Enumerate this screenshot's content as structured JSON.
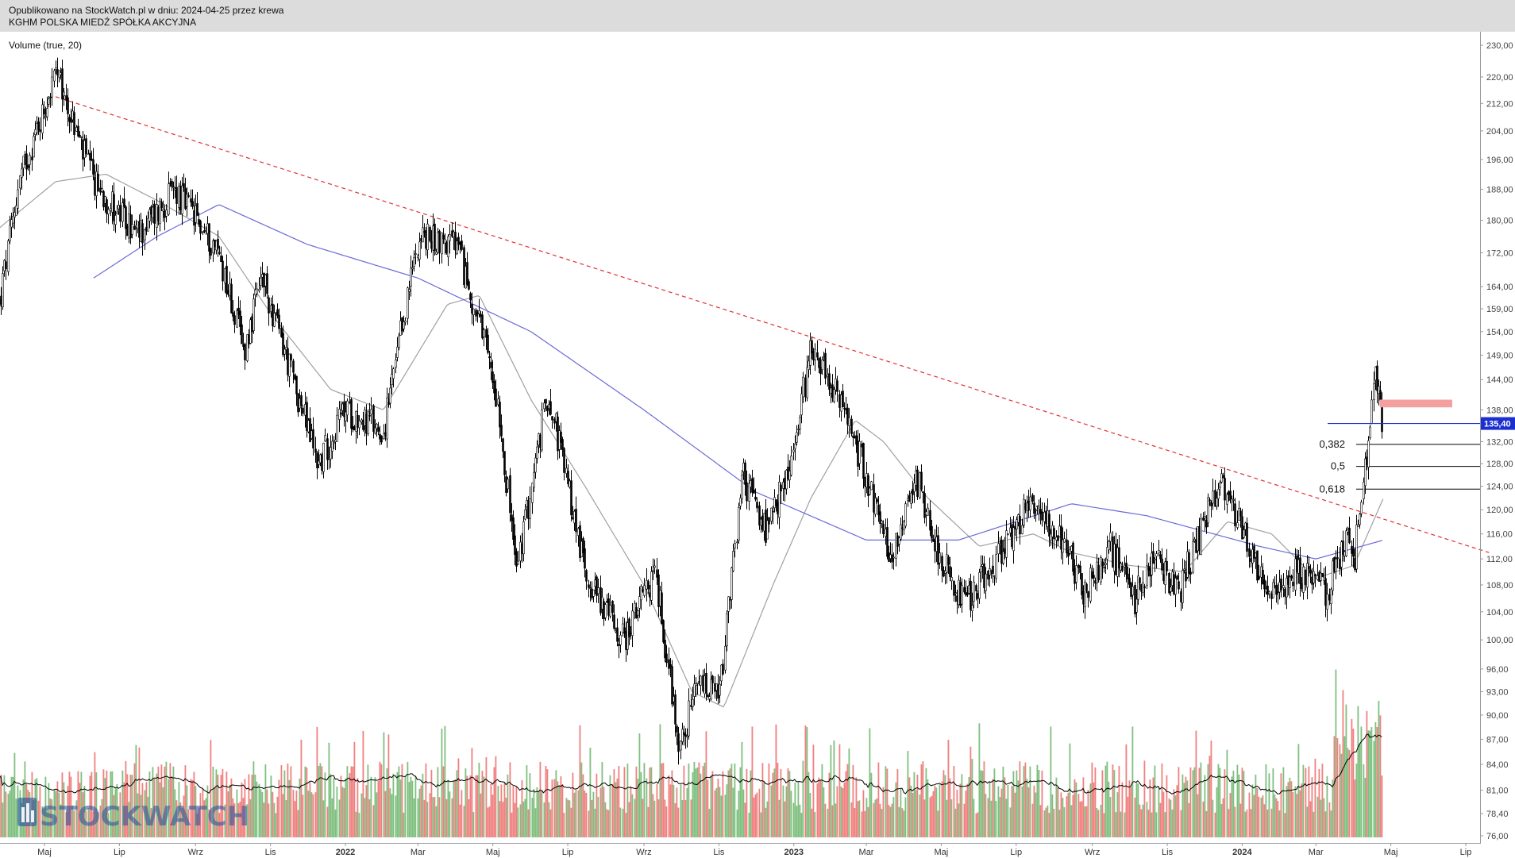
{
  "header": {
    "published": "Opublikowano na StockWatch.pl w dniu: 2024-04-25 przez krewa",
    "company": "KGHM POLSKA MIEDŹ SPÓŁKA AKCYJNA"
  },
  "indicator_label": "Volume (true, 20)",
  "watermark": "STOCKWATCH",
  "colors": {
    "up_volume": "#7fbf7f",
    "down_volume": "#f08080",
    "trendline": "#e03030",
    "ma_long": "#6a6ad8",
    "ma_short": "#a0a0a0",
    "resistance_zone": "#f4a0a0",
    "price_badge": "#1b2fd0"
  },
  "chart_data": {
    "type": "candlestick",
    "title": "KGHM POLSKA MIEDŹ SPÓŁKA AKCYJNA",
    "y_scale": "log",
    "ylim": [
      76,
      232
    ],
    "y_ticks": [
      "230,00",
      "220,00",
      "212,00",
      "204,00",
      "196,00",
      "188,00",
      "180,00",
      "172,00",
      "164,00",
      "159,00",
      "154,00",
      "149,00",
      "144,00",
      "138,00",
      "132,00",
      "128,00",
      "124,00",
      "120,00",
      "116,00",
      "112,00",
      "108,00",
      "104,00",
      "100,00",
      "96,00",
      "93,00",
      "90,00",
      "87,00",
      "84,00",
      "81,00",
      "78,40",
      "76,00"
    ],
    "x_ticks": [
      "Maj",
      "Lip",
      "Wrz",
      "Lis",
      "2022",
      "Mar",
      "Maj",
      "Lip",
      "Wrz",
      "Lis",
      "2023",
      "Mar",
      "Maj",
      "Lip",
      "Wrz",
      "Lis",
      "2024",
      "Mar",
      "Maj",
      "Lip"
    ],
    "x_tick_dates": [
      "2021-05-01",
      "2021-07-01",
      "2021-09-01",
      "2021-11-01",
      "2022-01-01",
      "2022-03-01",
      "2022-05-01",
      "2022-07-01",
      "2022-09-01",
      "2022-11-01",
      "2023-01-01",
      "2023-03-01",
      "2023-05-01",
      "2023-07-01",
      "2023-09-01",
      "2023-11-01",
      "2024-01-01",
      "2024-03-01",
      "2024-05-01",
      "2024-07-01"
    ],
    "price_key_points": [
      {
        "date": "2021-03-25",
        "close": 160
      },
      {
        "date": "2021-04-10",
        "close": 190
      },
      {
        "date": "2021-05-10",
        "close": 221
      },
      {
        "date": "2021-06-10",
        "close": 190
      },
      {
        "date": "2021-07-15",
        "close": 176
      },
      {
        "date": "2021-08-15",
        "close": 188
      },
      {
        "date": "2021-09-20",
        "close": 172
      },
      {
        "date": "2021-10-10",
        "close": 150
      },
      {
        "date": "2021-10-25",
        "close": 166
      },
      {
        "date": "2021-12-10",
        "close": 128
      },
      {
        "date": "2021-12-31",
        "close": 138
      },
      {
        "date": "2022-02-01",
        "close": 134
      },
      {
        "date": "2022-03-01",
        "close": 176
      },
      {
        "date": "2022-04-01",
        "close": 174
      },
      {
        "date": "2022-04-20",
        "close": 155
      },
      {
        "date": "2022-05-05",
        "close": 140
      },
      {
        "date": "2022-05-20",
        "close": 110
      },
      {
        "date": "2022-06-15",
        "close": 142
      },
      {
        "date": "2022-07-15",
        "close": 110
      },
      {
        "date": "2022-08-15",
        "close": 100
      },
      {
        "date": "2022-09-10",
        "close": 110
      },
      {
        "date": "2022-09-30",
        "close": 86
      },
      {
        "date": "2022-10-15",
        "close": 94
      },
      {
        "date": "2022-11-01",
        "close": 92
      },
      {
        "date": "2022-11-20",
        "close": 126
      },
      {
        "date": "2022-12-10",
        "close": 116
      },
      {
        "date": "2023-01-01",
        "close": 130
      },
      {
        "date": "2023-01-15",
        "close": 152
      },
      {
        "date": "2023-02-10",
        "close": 138
      },
      {
        "date": "2023-03-01",
        "close": 126
      },
      {
        "date": "2023-03-20",
        "close": 112
      },
      {
        "date": "2023-04-10",
        "close": 126
      },
      {
        "date": "2023-05-01",
        "close": 112
      },
      {
        "date": "2023-05-20",
        "close": 105
      },
      {
        "date": "2023-06-15",
        "close": 112
      },
      {
        "date": "2023-07-15",
        "close": 122
      },
      {
        "date": "2023-08-10",
        "close": 114
      },
      {
        "date": "2023-08-25",
        "close": 107
      },
      {
        "date": "2023-09-15",
        "close": 114
      },
      {
        "date": "2023-10-05",
        "close": 106
      },
      {
        "date": "2023-10-20",
        "close": 112
      },
      {
        "date": "2023-11-10",
        "close": 107
      },
      {
        "date": "2023-12-01",
        "close": 118
      },
      {
        "date": "2023-12-15",
        "close": 126
      },
      {
        "date": "2024-01-10",
        "close": 112
      },
      {
        "date": "2024-01-25",
        "close": 106
      },
      {
        "date": "2024-02-10",
        "close": 110
      },
      {
        "date": "2024-02-25",
        "close": 109
      },
      {
        "date": "2024-03-10",
        "close": 107
      },
      {
        "date": "2024-03-25",
        "close": 116
      },
      {
        "date": "2024-04-01",
        "close": 112
      },
      {
        "date": "2024-04-10",
        "close": 128
      },
      {
        "date": "2024-04-18",
        "close": 146
      },
      {
        "date": "2024-04-22",
        "close": 138
      },
      {
        "date": "2024-04-25",
        "close": 135.4
      }
    ],
    "moving_average_long_points": [
      {
        "date": "2021-06-10",
        "value": 166
      },
      {
        "date": "2021-08-01",
        "value": 176
      },
      {
        "date": "2021-09-20",
        "value": 184
      },
      {
        "date": "2021-12-01",
        "value": 174
      },
      {
        "date": "2022-03-01",
        "value": 166
      },
      {
        "date": "2022-06-01",
        "value": 154
      },
      {
        "date": "2022-09-01",
        "value": 138
      },
      {
        "date": "2022-12-01",
        "value": 123
      },
      {
        "date": "2023-03-01",
        "value": 115
      },
      {
        "date": "2023-05-15",
        "value": 115
      },
      {
        "date": "2023-08-15",
        "value": 121
      },
      {
        "date": "2023-10-15",
        "value": 119
      },
      {
        "date": "2024-01-15",
        "value": 114
      },
      {
        "date": "2024-03-01",
        "value": 112
      },
      {
        "date": "2024-04-25",
        "value": 115
      }
    ],
    "moving_average_short_points": [
      {
        "date": "2021-03-25",
        "value": 178
      },
      {
        "date": "2021-05-10",
        "value": 190
      },
      {
        "date": "2021-06-20",
        "value": 192
      },
      {
        "date": "2021-08-01",
        "value": 185
      },
      {
        "date": "2021-09-20",
        "value": 176
      },
      {
        "date": "2021-11-01",
        "value": 158
      },
      {
        "date": "2021-12-20",
        "value": 142
      },
      {
        "date": "2022-02-01",
        "value": 138
      },
      {
        "date": "2022-03-25",
        "value": 160
      },
      {
        "date": "2022-04-20",
        "value": 162
      },
      {
        "date": "2022-06-01",
        "value": 140
      },
      {
        "date": "2022-07-15",
        "value": 124
      },
      {
        "date": "2022-09-01",
        "value": 108
      },
      {
        "date": "2022-10-10",
        "value": 93
      },
      {
        "date": "2022-11-05",
        "value": 91
      },
      {
        "date": "2022-12-15",
        "value": 108
      },
      {
        "date": "2023-01-15",
        "value": 122
      },
      {
        "date": "2023-02-20",
        "value": 136
      },
      {
        "date": "2023-03-15",
        "value": 132
      },
      {
        "date": "2023-04-20",
        "value": 122
      },
      {
        "date": "2023-06-01",
        "value": 114
      },
      {
        "date": "2023-07-15",
        "value": 116
      },
      {
        "date": "2023-08-15",
        "value": 113
      },
      {
        "date": "2023-10-01",
        "value": 111
      },
      {
        "date": "2023-11-15",
        "value": 110
      },
      {
        "date": "2023-12-20",
        "value": 118
      },
      {
        "date": "2024-01-25",
        "value": 116
      },
      {
        "date": "2024-03-01",
        "value": 109
      },
      {
        "date": "2024-04-01",
        "value": 111
      },
      {
        "date": "2024-04-25",
        "value": 122
      }
    ],
    "trendline": {
      "from": {
        "date": "2021-05-10",
        "value": 214
      },
      "to": {
        "date": "2024-07-20",
        "value": 113
      }
    },
    "fibonacci_levels": [
      {
        "label": "0,382",
        "value": 131.5
      },
      {
        "label": "0,5",
        "value": 127.5
      },
      {
        "label": "0,618",
        "value": 123.5
      }
    ],
    "last_price": {
      "label": "135,40",
      "value": 135.4
    },
    "resistance_zone": {
      "from_date": "2024-04-22",
      "to_date": "2024-06-20",
      "low": 138.5,
      "high": 140
    }
  }
}
